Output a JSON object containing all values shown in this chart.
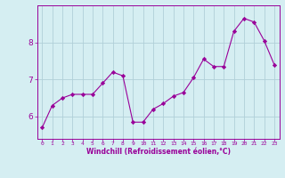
{
  "x": [
    0,
    1,
    2,
    3,
    4,
    5,
    6,
    7,
    8,
    9,
    10,
    11,
    12,
    13,
    14,
    15,
    16,
    17,
    18,
    19,
    20,
    21,
    22,
    23
  ],
  "y": [
    5.7,
    6.3,
    6.5,
    6.6,
    6.6,
    6.6,
    6.9,
    7.2,
    7.1,
    5.85,
    5.85,
    6.2,
    6.35,
    6.55,
    6.65,
    7.05,
    7.55,
    7.35,
    7.35,
    8.3,
    8.65,
    8.55,
    8.05,
    7.4
  ],
  "line_color": "#990099",
  "marker": "D",
  "marker_size": 2.2,
  "bg_color": "#d5eef2",
  "grid_color": "#b0d0d8",
  "xlabel": "Windchill (Refroidissement éolien,°C)",
  "ylabel_ticks": [
    6,
    7,
    8
  ],
  "xlim": [
    -0.5,
    23.5
  ],
  "ylim": [
    5.4,
    9.0
  ],
  "title": ""
}
